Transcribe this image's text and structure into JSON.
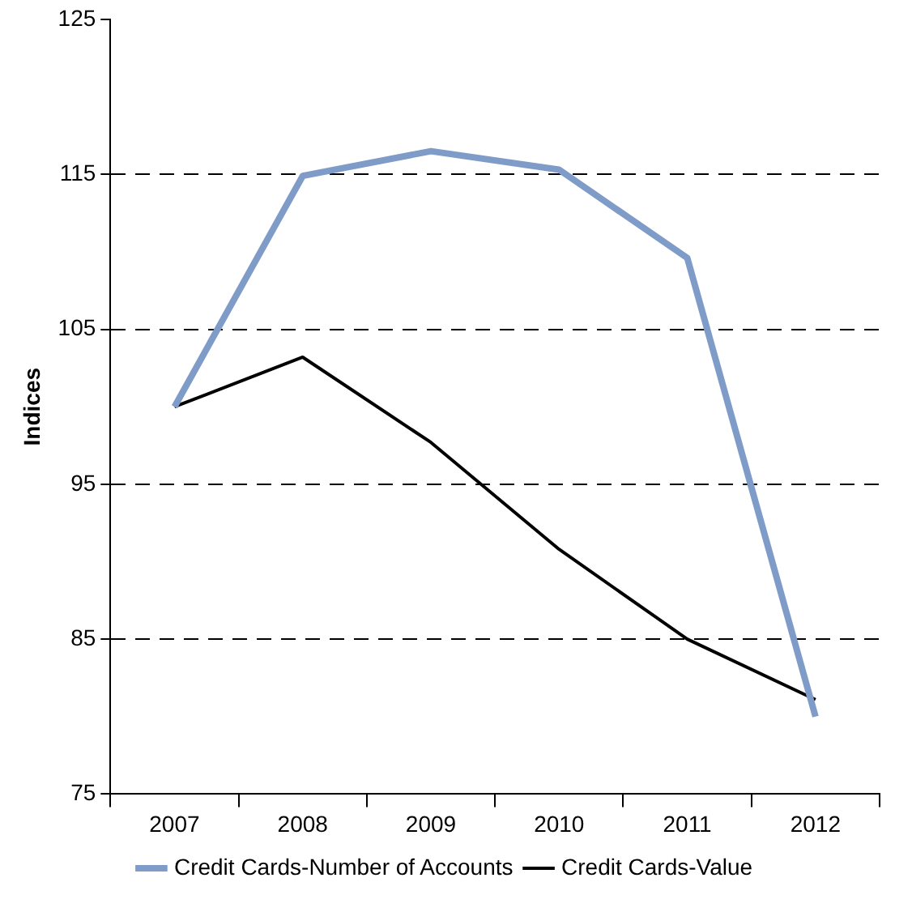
{
  "chart_data": {
    "type": "line",
    "ylabel": "Indices",
    "categories": [
      "2007",
      "2008",
      "2009",
      "2010",
      "2011",
      "2012"
    ],
    "series": [
      {
        "name": "Credit Cards-Number of Accounts",
        "color": "#7f9cc9",
        "values": [
          100,
          114.9,
          116.5,
          115.3,
          109.6,
          80
        ]
      },
      {
        "name": "Credit Cards-Value",
        "color": "#000000",
        "values": [
          100,
          103.2,
          97.7,
          90.8,
          85,
          81.1
        ]
      }
    ],
    "ylim": [
      75,
      125
    ],
    "yticks": [
      75,
      85,
      95,
      105,
      115,
      125
    ],
    "grid": "y",
    "legend": "bottom",
    "marker": "none",
    "line_style": "solid"
  }
}
